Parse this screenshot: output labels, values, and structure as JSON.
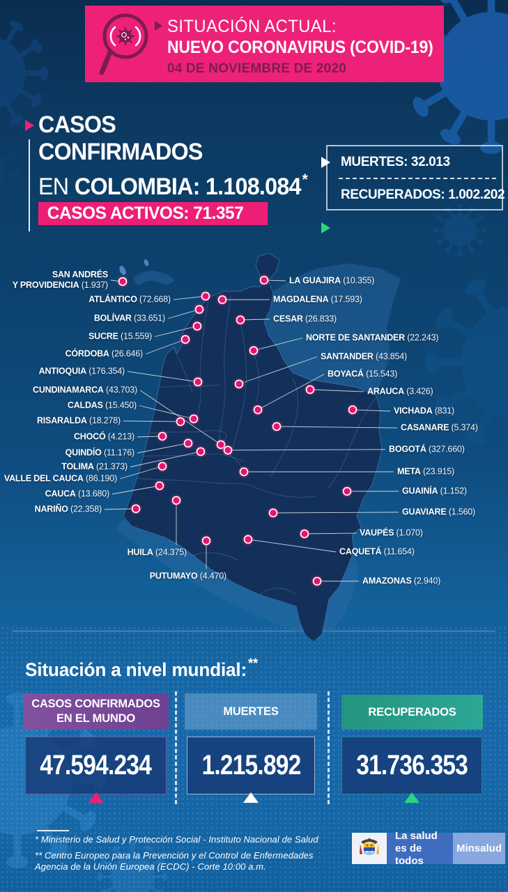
{
  "header": {
    "kicker": "SITUACIÓN ACTUAL:",
    "title": "NUEVO CORONAVIRUS (COVID-19)",
    "date": "04 DE NOVIEMBRE DE 2020"
  },
  "summary": {
    "line1": "CASOS",
    "line2": "CONFIRMADOS",
    "line3_light": "EN",
    "line3_bold": "COLOMBIA: 1.108.084",
    "line3_sup": "*",
    "active_label": "CASOS ACTIVOS: 71.357",
    "deaths_label": "MUERTES: 32.013",
    "recovered_label": "RECUPERADOS: 1.002.202"
  },
  "map": {
    "departments": [
      {
        "name_lines": [
          "SAN ANDRÉS",
          "Y PROVIDENCIA"
        ],
        "name": "SAN ANDRÉS Y PROVIDENCIA",
        "value": "1.937",
        "side": "left",
        "label": [
          155,
          402
        ],
        "dot": [
          176,
          404
        ]
      },
      {
        "name": "ATLÁNTICO",
        "value": "72.668",
        "side": "left",
        "label": [
          245,
          430
        ],
        "dot": [
          295,
          425
        ]
      },
      {
        "name": "BOLÍVAR",
        "value": "33.651",
        "side": "left",
        "label": [
          237,
          457
        ],
        "dot": [
          286,
          444
        ]
      },
      {
        "name": "SUCRE",
        "value": "15.559",
        "side": "left",
        "label": [
          218,
          483
        ],
        "dot": [
          283,
          468
        ]
      },
      {
        "name": "CÓRDOBA",
        "value": "26.646",
        "side": "left",
        "label": [
          205,
          508
        ],
        "dot": [
          266,
          487
        ]
      },
      {
        "name": "ANTIOQUIA",
        "value": "176.354",
        "side": "left",
        "label": [
          179,
          533
        ],
        "dot": [
          284,
          548
        ]
      },
      {
        "name": "CUNDINAMARCA",
        "value": "43.703",
        "side": "left",
        "label": [
          197,
          560
        ],
        "dot": [
          317,
          638
        ]
      },
      {
        "name": "CALDAS",
        "value": "15.450",
        "side": "left",
        "label": [
          196,
          582
        ],
        "dot": [
          278,
          601
        ]
      },
      {
        "name": "RISARALDA",
        "value": "18.278",
        "side": "left",
        "label": [
          173,
          604
        ],
        "dot": [
          259,
          605
        ]
      },
      {
        "name": "CHOCÓ",
        "value": "4.213",
        "side": "left",
        "label": [
          193,
          627
        ],
        "dot": [
          233,
          626
        ]
      },
      {
        "name": "QUINDÍO",
        "value": "11.176",
        "side": "left",
        "label": [
          193,
          650
        ],
        "dot": [
          270,
          636
        ]
      },
      {
        "name": "TOLIMA",
        "value": "21.373",
        "side": "left",
        "label": [
          183,
          670
        ],
        "dot": [
          288,
          648
        ]
      },
      {
        "name": "VALLE DEL CAUCA",
        "value": "86.190",
        "side": "left",
        "label": [
          168,
          687
        ],
        "dot": [
          233,
          669
        ]
      },
      {
        "name": "CAUCA",
        "value": "13.680",
        "side": "left",
        "label": [
          157,
          709
        ],
        "dot": [
          229,
          697
        ]
      },
      {
        "name": "NARIÑO",
        "value": "22.358",
        "side": "left",
        "label": [
          146,
          731
        ],
        "dot": [
          195,
          730
        ]
      },
      {
        "name": "HUILA",
        "value": "24.375",
        "side": "left",
        "label": [
          268,
          793
        ],
        "dot": [
          253,
          718
        ],
        "connector": "vertical"
      },
      {
        "name": "PUTUMAYO",
        "value": "4.470",
        "side": "left",
        "label": [
          325,
          827
        ],
        "dot": [
          296,
          776
        ],
        "connector": "vertical"
      },
      {
        "name": "LA GUAJIRA",
        "value": "10.355",
        "side": "right",
        "label": [
          415,
          403
        ],
        "dot": [
          379,
          402
        ]
      },
      {
        "name": "MAGDALENA",
        "value": "17.593",
        "side": "right",
        "label": [
          392,
          430
        ],
        "dot": [
          319,
          430
        ]
      },
      {
        "name": "CESAR",
        "value": "26.833",
        "side": "right",
        "label": [
          392,
          458
        ],
        "dot": [
          345,
          459
        ]
      },
      {
        "name": "NORTE DE SANTANDER",
        "value": "22.243",
        "side": "right",
        "label": [
          439,
          485
        ],
        "dot": [
          364,
          503
        ]
      },
      {
        "name": "SANTANDER",
        "value": "43.854",
        "side": "right",
        "label": [
          460,
          512
        ],
        "dot": [
          343,
          551
        ]
      },
      {
        "name": "BOYACÁ",
        "value": "15.543",
        "side": "right",
        "label": [
          470,
          537
        ],
        "dot": [
          370,
          588
        ]
      },
      {
        "name": "ARAUCA",
        "value": "3.426",
        "side": "right",
        "label": [
          527,
          562
        ],
        "dot": [
          445,
          559
        ]
      },
      {
        "name": "VICHADA",
        "value": "831",
        "side": "right",
        "label": [
          565,
          590
        ],
        "dot": [
          506,
          588
        ]
      },
      {
        "name": "CASANARE",
        "value": "5.374",
        "side": "right",
        "label": [
          575,
          614
        ],
        "dot": [
          397,
          612
        ]
      },
      {
        "name": "BOGOTÁ",
        "value": "327.660",
        "side": "right",
        "label": [
          558,
          645
        ],
        "dot": [
          327,
          646
        ]
      },
      {
        "name": "META",
        "value": "23.915",
        "side": "right",
        "label": [
          570,
          677
        ],
        "dot": [
          350,
          677
        ]
      },
      {
        "name": "GUAINÍA",
        "value": "1.152",
        "side": "right",
        "label": [
          577,
          705
        ],
        "dot": [
          498,
          705
        ]
      },
      {
        "name": "GUAVIARE",
        "value": "1.560",
        "side": "right",
        "label": [
          577,
          735
        ],
        "dot": [
          392,
          736
        ]
      },
      {
        "name": "VAUPÉS",
        "value": "1.070",
        "side": "right",
        "label": [
          516,
          765
        ],
        "dot": [
          437,
          766
        ]
      },
      {
        "name": "CAQUETÁ",
        "value": "11.654",
        "side": "right",
        "label": [
          487,
          792
        ],
        "dot": [
          356,
          774
        ]
      },
      {
        "name": "AMAZONAS",
        "value": "2.940",
        "side": "right",
        "label": [
          520,
          834
        ],
        "dot": [
          455,
          834
        ]
      }
    ]
  },
  "world": {
    "heading": "Situación a nivel mundial:",
    "heading_marks": "**",
    "boxes": [
      {
        "label_line1": "CASOS CONFIRMADOS",
        "label_line2": "EN EL MUNDO",
        "value": "47.594.234",
        "trend": "up",
        "accent": "#ee1e76"
      },
      {
        "label": "MUERTES",
        "value": "1.215.892",
        "trend": "up",
        "accent": "#ffffff"
      },
      {
        "label": "RECUPERADOS",
        "value": "31.736.353",
        "trend": "up",
        "accent": "#2bd47e"
      }
    ]
  },
  "footer": {
    "note1": "* Ministerio de Salud y Protección Social - Instituto Nacional de Salud",
    "note2": "** Centro Europeo para la Prevención y el Control de Enfermedades",
    "note3": "Agencia de la Unión Europea (ECDC) - Corte 10:00 a.m.",
    "brand": {
      "tagline1": "La salud",
      "tagline2": "es de todos",
      "ministry": "Minsalud"
    }
  },
  "colors": {
    "pink": "#ee2178",
    "dark_maroon": "#7d1c4e",
    "green": "#2bd47e",
    "purple": "#7a4b96",
    "teal": "#27a08c",
    "navy_map": "#13305a",
    "background_blue": "#0f4d80"
  }
}
